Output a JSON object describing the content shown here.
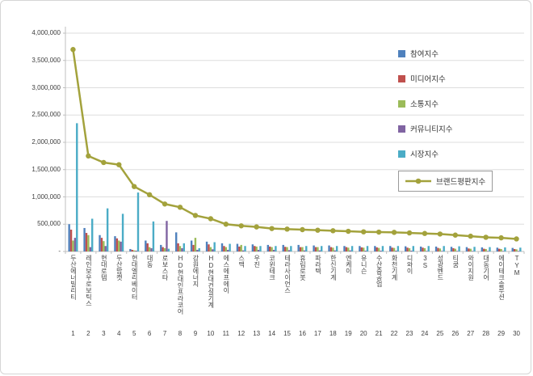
{
  "chart_data": {
    "type": "bar",
    "title": "",
    "xlabel": "",
    "ylabel": "",
    "ylim": [
      0,
      4000000
    ],
    "ytick_interval": 500000,
    "ytick_labels": [
      "-",
      "500,000",
      "1,000,000",
      "1,500,000",
      "2,000,000",
      "2,500,000",
      "3,000,000",
      "3,500,000",
      "4,000,000"
    ],
    "grid": true,
    "legend_position": "right",
    "categories": [
      "두산에너빌리티",
      "레인보우로보틱스",
      "현대로템",
      "두산밥캣",
      "현대엘리베이터",
      "대동",
      "로보스타",
      "HD현대인프라코어",
      "강원에너지",
      "HD현대건설기계",
      "에스에프에이",
      "스맥",
      "우진",
      "코윈테크",
      "테라사이언스",
      "휴림로봇",
      "파라텍",
      "한신기계",
      "엔케이",
      "유니슨",
      "수산중공업",
      "화천기계",
      "디와이",
      "3S",
      "성광벤드",
      "티쿰",
      "와이지원",
      "대동기어",
      "에이테크솔루션",
      "TYM"
    ],
    "category_ranks": [
      "1",
      "2",
      "3",
      "4",
      "5",
      "6",
      "7",
      "8",
      "9",
      "10",
      "11",
      "12",
      "13",
      "14",
      "15",
      "16",
      "17",
      "18",
      "19",
      "20",
      "21",
      "22",
      "23",
      "24",
      "25",
      "26",
      "27",
      "28",
      "29",
      "30"
    ],
    "series": [
      {
        "name": "참여지수",
        "type": "bar",
        "color": "#4F81BD",
        "values": [
          500000,
          430000,
          300000,
          280000,
          45000,
          200000,
          120000,
          350000,
          200000,
          180000,
          150000,
          140000,
          130000,
          120000,
          120000,
          120000,
          110000,
          110000,
          100000,
          100000,
          100000,
          100000,
          95000,
          90000,
          90000,
          85000,
          80000,
          75000,
          70000,
          65000
        ]
      },
      {
        "name": "미디어지수",
        "type": "bar",
        "color": "#C0504D",
        "values": [
          400000,
          340000,
          250000,
          240000,
          30000,
          150000,
          80000,
          150000,
          120000,
          130000,
          100000,
          90000,
          100000,
          90000,
          85000,
          80000,
          80000,
          80000,
          80000,
          75000,
          75000,
          70000,
          70000,
          70000,
          65000,
          60000,
          55000,
          50000,
          50000,
          45000
        ]
      },
      {
        "name": "소통지수",
        "type": "bar",
        "color": "#9BBB59",
        "values": [
          200000,
          300000,
          190000,
          200000,
          20000,
          80000,
          60000,
          100000,
          250000,
          80000,
          80000,
          120000,
          90000,
          80000,
          80000,
          80000,
          80000,
          70000,
          70000,
          70000,
          65000,
          65000,
          60000,
          60000,
          55000,
          50000,
          50000,
          45000,
          45000,
          40000
        ]
      },
      {
        "name": "커뮤니티지수",
        "type": "bar",
        "color": "#8064A2",
        "values": [
          250000,
          80000,
          100000,
          180000,
          15000,
          60000,
          560000,
          60000,
          30000,
          40000,
          30000,
          20000,
          30000,
          30000,
          25000,
          20000,
          20000,
          20000,
          20000,
          15000,
          15000,
          15000,
          15000,
          10000,
          10000,
          10000,
          10000,
          10000,
          10000,
          10000
        ]
      },
      {
        "name": "시장지수",
        "type": "bar",
        "color": "#4BACC6",
        "values": [
          2350000,
          600000,
          790000,
          690000,
          1080000,
          550000,
          50000,
          150000,
          60000,
          170000,
          140000,
          100000,
          100000,
          100000,
          100000,
          100000,
          100000,
          100000,
          100000,
          100000,
          100000,
          100000,
          100000,
          100000,
          100000,
          95000,
          85000,
          80000,
          75000,
          70000
        ]
      },
      {
        "name": "브랜드평판지수",
        "type": "line",
        "color": "#A3A23C",
        "values": [
          3700000,
          1750000,
          1630000,
          1590000,
          1190000,
          1040000,
          870000,
          810000,
          660000,
          600000,
          500000,
          470000,
          450000,
          420000,
          410000,
          400000,
          390000,
          380000,
          370000,
          360000,
          355000,
          350000,
          340000,
          330000,
          320000,
          300000,
          280000,
          260000,
          250000,
          230000
        ]
      }
    ]
  }
}
